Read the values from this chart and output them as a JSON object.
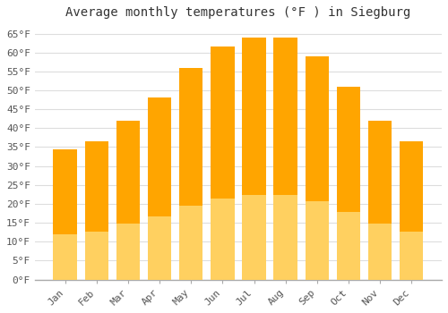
{
  "title": "Average monthly temperatures (°F ) in Siegburg",
  "months": [
    "Jan",
    "Feb",
    "Mar",
    "Apr",
    "May",
    "Jun",
    "Jul",
    "Aug",
    "Sep",
    "Oct",
    "Nov",
    "Dec"
  ],
  "values": [
    34.5,
    36.5,
    42,
    48,
    56,
    61.5,
    64,
    64,
    59,
    51,
    42,
    36.5
  ],
  "bar_color_top": "#FFA500",
  "bar_color_bottom": "#FFD060",
  "ylim": [
    0,
    67
  ],
  "yticks": [
    0,
    5,
    10,
    15,
    20,
    25,
    30,
    35,
    40,
    45,
    50,
    55,
    60,
    65
  ],
  "ytick_labels": [
    "0°F",
    "5°F",
    "10°F",
    "15°F",
    "20°F",
    "25°F",
    "30°F",
    "35°F",
    "40°F",
    "45°F",
    "50°F",
    "55°F",
    "60°F",
    "65°F"
  ],
  "grid_color": "#dddddd",
  "bg_color": "#ffffff",
  "title_fontsize": 10,
  "tick_fontsize": 8,
  "font_family": "monospace"
}
